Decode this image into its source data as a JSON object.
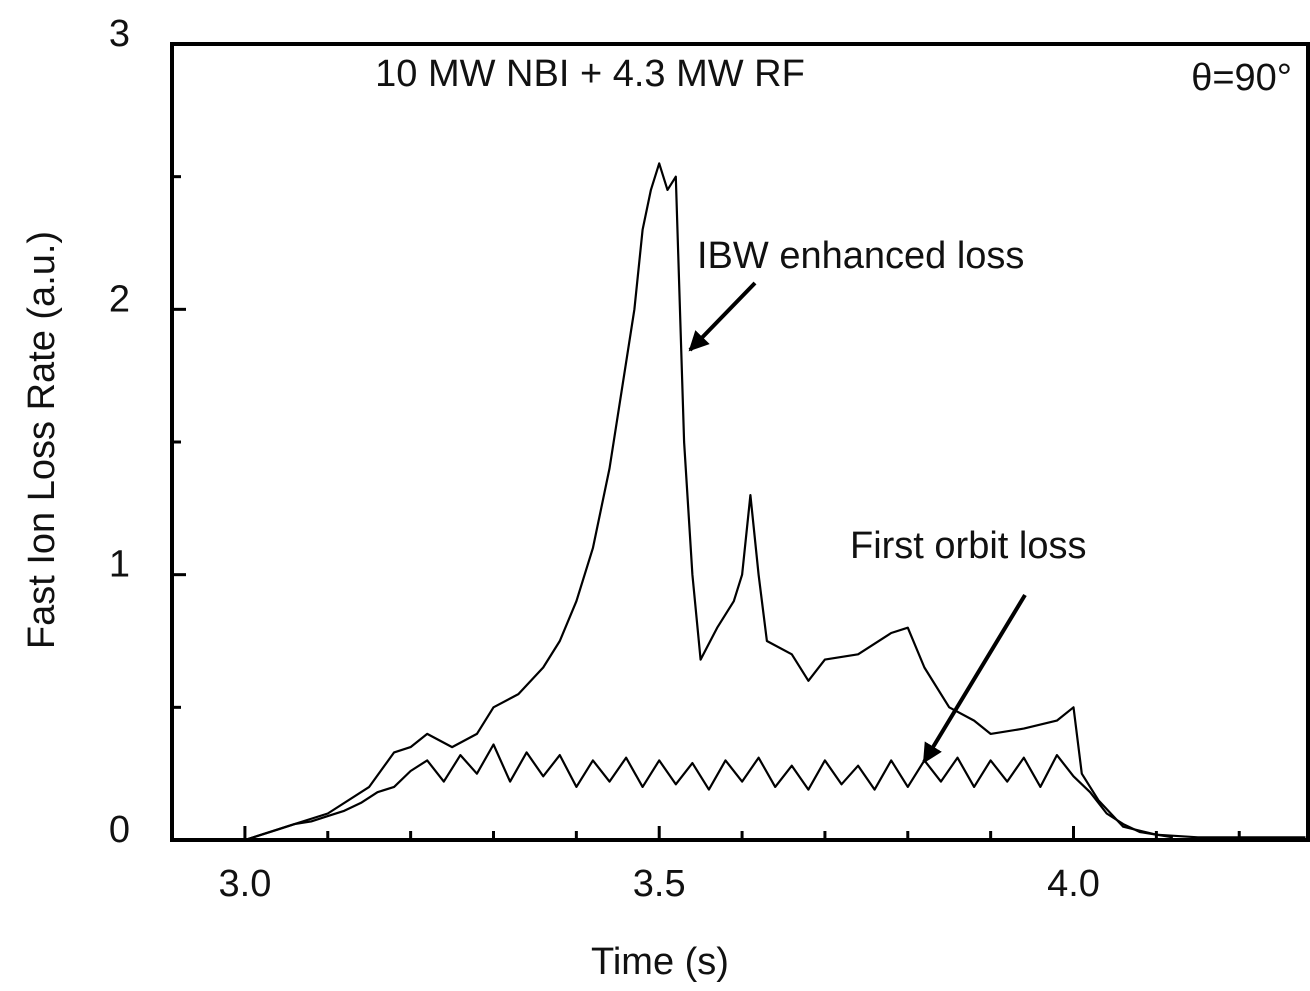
{
  "chart_data": {
    "type": "line",
    "subtitle": "10 MW NBI + 4.3 MW RF",
    "annotation": "θ=90°",
    "xlabel": "Time (s)",
    "ylabel": "Fast Ion Loss Rate (a.u.)",
    "xlim": [
      2.912,
      4.283
    ],
    "ylim": [
      0,
      3
    ],
    "xticks": [
      {
        "value": 3,
        "label": "3.0"
      },
      3.5,
      {
        "value": 4,
        "label": "4.0"
      }
    ],
    "xminorticks": [
      3.1,
      3.2,
      3.3,
      3.4,
      3.6,
      3.7,
      3.8,
      3.9,
      4.1,
      4.2
    ],
    "yticks": [
      0,
      1,
      2,
      3
    ],
    "yminorticks": [
      0.5,
      1.5,
      2.5
    ],
    "series": [
      {
        "name": "IBW enhanced loss",
        "color": "#000000",
        "x": [
          3.0,
          3.05,
          3.1,
          3.15,
          3.18,
          3.2,
          3.22,
          3.25,
          3.28,
          3.3,
          3.33,
          3.36,
          3.38,
          3.4,
          3.42,
          3.44,
          3.46,
          3.47,
          3.48,
          3.49,
          3.5,
          3.51,
          3.52,
          3.53,
          3.54,
          3.55,
          3.57,
          3.59,
          3.6,
          3.61,
          3.62,
          3.63,
          3.66,
          3.68,
          3.7,
          3.74,
          3.78,
          3.8,
          3.82,
          3.85,
          3.88,
          3.9,
          3.94,
          3.98,
          4.0,
          4.01,
          4.03,
          4.06,
          4.1,
          4.15,
          4.28
        ],
        "values": [
          0,
          0.05,
          0.1,
          0.2,
          0.33,
          0.35,
          0.4,
          0.35,
          0.4,
          0.5,
          0.55,
          0.65,
          0.75,
          0.9,
          1.1,
          1.4,
          1.8,
          2.0,
          2.3,
          2.45,
          2.55,
          2.45,
          2.5,
          1.5,
          1.0,
          0.68,
          0.8,
          0.9,
          1.0,
          1.3,
          1.0,
          0.75,
          0.7,
          0.6,
          0.68,
          0.7,
          0.78,
          0.8,
          0.65,
          0.5,
          0.45,
          0.4,
          0.42,
          0.45,
          0.5,
          0.25,
          0.15,
          0.05,
          0.02,
          0.01,
          0.01
        ]
      },
      {
        "name": "First orbit loss",
        "color": "#000000",
        "x": [
          3.0,
          3.02,
          3.04,
          3.06,
          3.08,
          3.1,
          3.12,
          3.14,
          3.16,
          3.18,
          3.2,
          3.22,
          3.24,
          3.26,
          3.28,
          3.3,
          3.32,
          3.34,
          3.36,
          3.38,
          3.4,
          3.42,
          3.44,
          3.46,
          3.48,
          3.5,
          3.52,
          3.54,
          3.56,
          3.58,
          3.6,
          3.62,
          3.64,
          3.66,
          3.68,
          3.7,
          3.72,
          3.74,
          3.76,
          3.78,
          3.8,
          3.82,
          3.84,
          3.86,
          3.88,
          3.9,
          3.92,
          3.94,
          3.96,
          3.98,
          4.0,
          4.02,
          4.04,
          4.06,
          4.08,
          4.1,
          4.12
        ],
        "values": [
          0,
          0.02,
          0.04,
          0.06,
          0.07,
          0.09,
          0.11,
          0.14,
          0.18,
          0.2,
          0.26,
          0.3,
          0.22,
          0.32,
          0.25,
          0.36,
          0.22,
          0.33,
          0.24,
          0.32,
          0.2,
          0.3,
          0.22,
          0.31,
          0.2,
          0.3,
          0.21,
          0.29,
          0.19,
          0.3,
          0.22,
          0.31,
          0.2,
          0.28,
          0.19,
          0.3,
          0.21,
          0.28,
          0.19,
          0.3,
          0.2,
          0.3,
          0.22,
          0.31,
          0.2,
          0.3,
          0.22,
          0.31,
          0.2,
          0.32,
          0.24,
          0.18,
          0.1,
          0.06,
          0.03,
          0.02,
          0.01
        ]
      }
    ]
  }
}
